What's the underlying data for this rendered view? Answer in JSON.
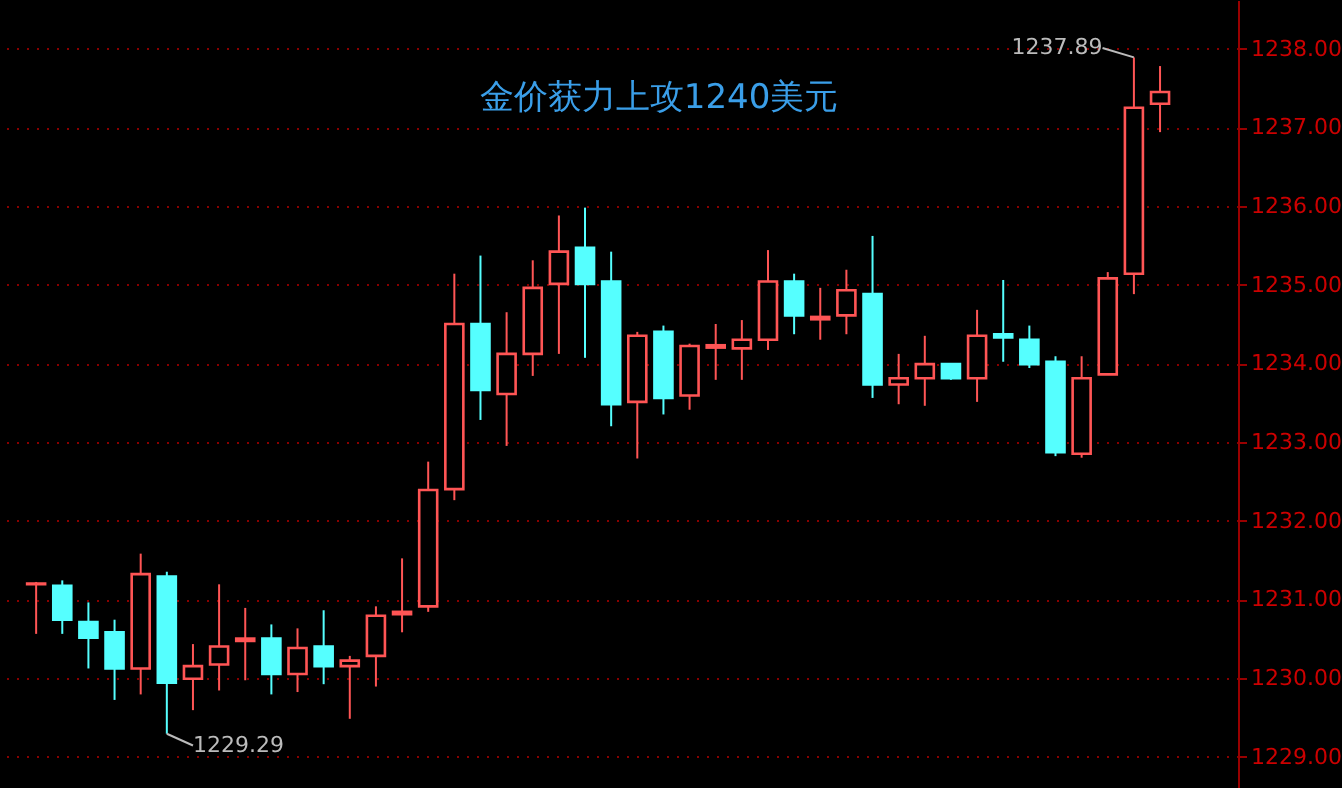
{
  "chart_data": {
    "type": "candlestick",
    "title": "金价获力上攻1240美元",
    "categories": [
      null,
      null,
      null,
      null,
      null,
      null,
      null,
      null,
      null,
      null,
      null,
      null,
      null,
      null,
      null,
      null,
      null,
      null,
      null,
      null,
      null,
      null,
      null,
      null,
      null,
      null,
      null,
      null,
      null,
      null,
      null,
      null,
      null,
      null,
      null,
      null,
      null,
      null,
      null,
      null,
      null,
      null,
      null,
      null
    ],
    "ohlc": [
      [
        1231.19,
        1231.22,
        1230.56,
        1231.2
      ],
      [
        1231.17,
        1231.24,
        1230.56,
        1230.74
      ],
      [
        1230.71,
        1230.96,
        1230.12,
        1230.51
      ],
      [
        1230.58,
        1230.74,
        1229.72,
        1230.12
      ],
      [
        1230.12,
        1231.58,
        1229.79,
        1231.32
      ],
      [
        1231.29,
        1231.35,
        1229.29,
        1229.94
      ],
      [
        1229.99,
        1230.43,
        1229.59,
        1230.15
      ],
      [
        1230.17,
        1231.19,
        1229.84,
        1230.4
      ],
      [
        1230.47,
        1230.89,
        1229.97,
        1230.5
      ],
      [
        1230.5,
        1230.68,
        1229.79,
        1230.05
      ],
      [
        1230.05,
        1230.63,
        1229.82,
        1230.38
      ],
      [
        1230.4,
        1230.86,
        1229.92,
        1230.15
      ],
      [
        1230.15,
        1230.28,
        1229.48,
        1230.22
      ],
      [
        1230.28,
        1230.91,
        1229.89,
        1230.79
      ],
      [
        1230.81,
        1231.52,
        1230.58,
        1230.84
      ],
      [
        1230.91,
        1232.75,
        1230.84,
        1232.39
      ],
      [
        1232.4,
        1235.14,
        1232.26,
        1234.5
      ],
      [
        1234.5,
        1235.37,
        1233.28,
        1233.66
      ],
      [
        1233.61,
        1234.65,
        1232.95,
        1234.12
      ],
      [
        1234.12,
        1235.31,
        1233.84,
        1234.96
      ],
      [
        1235.01,
        1235.88,
        1234.12,
        1235.42
      ],
      [
        1235.47,
        1235.98,
        1234.07,
        1235.01
      ],
      [
        1235.04,
        1235.42,
        1233.2,
        1233.48
      ],
      [
        1233.51,
        1234.4,
        1232.79,
        1234.35
      ],
      [
        1234.4,
        1234.48,
        1233.35,
        1233.56
      ],
      [
        1233.59,
        1234.25,
        1233.41,
        1234.22
      ],
      [
        1234.2,
        1234.5,
        1233.79,
        1234.23
      ],
      [
        1234.19,
        1234.55,
        1233.79,
        1234.3
      ],
      [
        1234.3,
        1235.44,
        1234.17,
        1235.04
      ],
      [
        1235.04,
        1235.14,
        1234.37,
        1234.61
      ],
      [
        1234.56,
        1234.96,
        1234.3,
        1234.59
      ],
      [
        1234.61,
        1235.19,
        1234.37,
        1234.93
      ],
      [
        1234.88,
        1235.62,
        1233.56,
        1233.73
      ],
      [
        1233.73,
        1234.12,
        1233.48,
        1233.81
      ],
      [
        1233.81,
        1234.35,
        1233.46,
        1233.99
      ],
      [
        1233.99,
        1233.99,
        1233.79,
        1233.81
      ],
      [
        1233.81,
        1234.68,
        1233.51,
        1234.35
      ],
      [
        1234.37,
        1235.06,
        1234.02,
        1234.33
      ],
      [
        1234.3,
        1234.48,
        1233.94,
        1233.99
      ],
      [
        1234.02,
        1234.09,
        1232.82,
        1232.87
      ],
      [
        1232.85,
        1234.09,
        1232.8,
        1233.81
      ],
      [
        1233.86,
        1235.16,
        1233.86,
        1235.08
      ],
      [
        1235.14,
        1237.89,
        1234.88,
        1237.25
      ],
      [
        1237.3,
        1237.78,
        1236.94,
        1237.45
      ]
    ],
    "colors": [
      "#ff5555",
      "#55ffff",
      "#55ffff",
      "#55ffff",
      "#ff5555",
      "#55ffff",
      "#ff5555",
      "#ff5555",
      "#ff5555",
      "#55ffff",
      "#ff5555",
      "#55ffff",
      "#ff5555",
      "#ff5555",
      "#ff5555",
      "#ff5555",
      "#ff5555",
      "#55ffff",
      "#ff5555",
      "#ff5555",
      "#ff5555",
      "#55ffff",
      "#55ffff",
      "#ff5555",
      "#55ffff",
      "#ff5555",
      "#ff5555",
      "#ff5555",
      "#ff5555",
      "#55ffff",
      "#ff5555",
      "#ff5555",
      "#55ffff",
      "#ff5555",
      "#ff5555",
      "#55ffff",
      "#ff5555",
      "#55ffff",
      "#55ffff",
      "#55ffff",
      "#ff5555",
      "#ff5555",
      "#ff5555",
      "#ff5555"
    ],
    "ylim": [
      1228.6,
      1238.62
    ],
    "yticks": [
      {
        "value": 1229,
        "label": "1229.00"
      },
      {
        "value": 1230,
        "label": "1230.00"
      },
      {
        "value": 1231,
        "label": "1231.00"
      },
      {
        "value": 1232,
        "label": "1232.00"
      },
      {
        "value": 1233,
        "label": "1233.00"
      },
      {
        "value": 1234,
        "label": "1234.00"
      },
      {
        "value": 1235,
        "label": "1235.00"
      },
      {
        "value": 1236,
        "label": "1236.00"
      },
      {
        "value": 1237,
        "label": "1237.00"
      },
      {
        "value": 1238,
        "label": "1238.00"
      }
    ],
    "grid": true,
    "annotations": [
      "1237.89",
      "1229.29"
    ]
  }
}
